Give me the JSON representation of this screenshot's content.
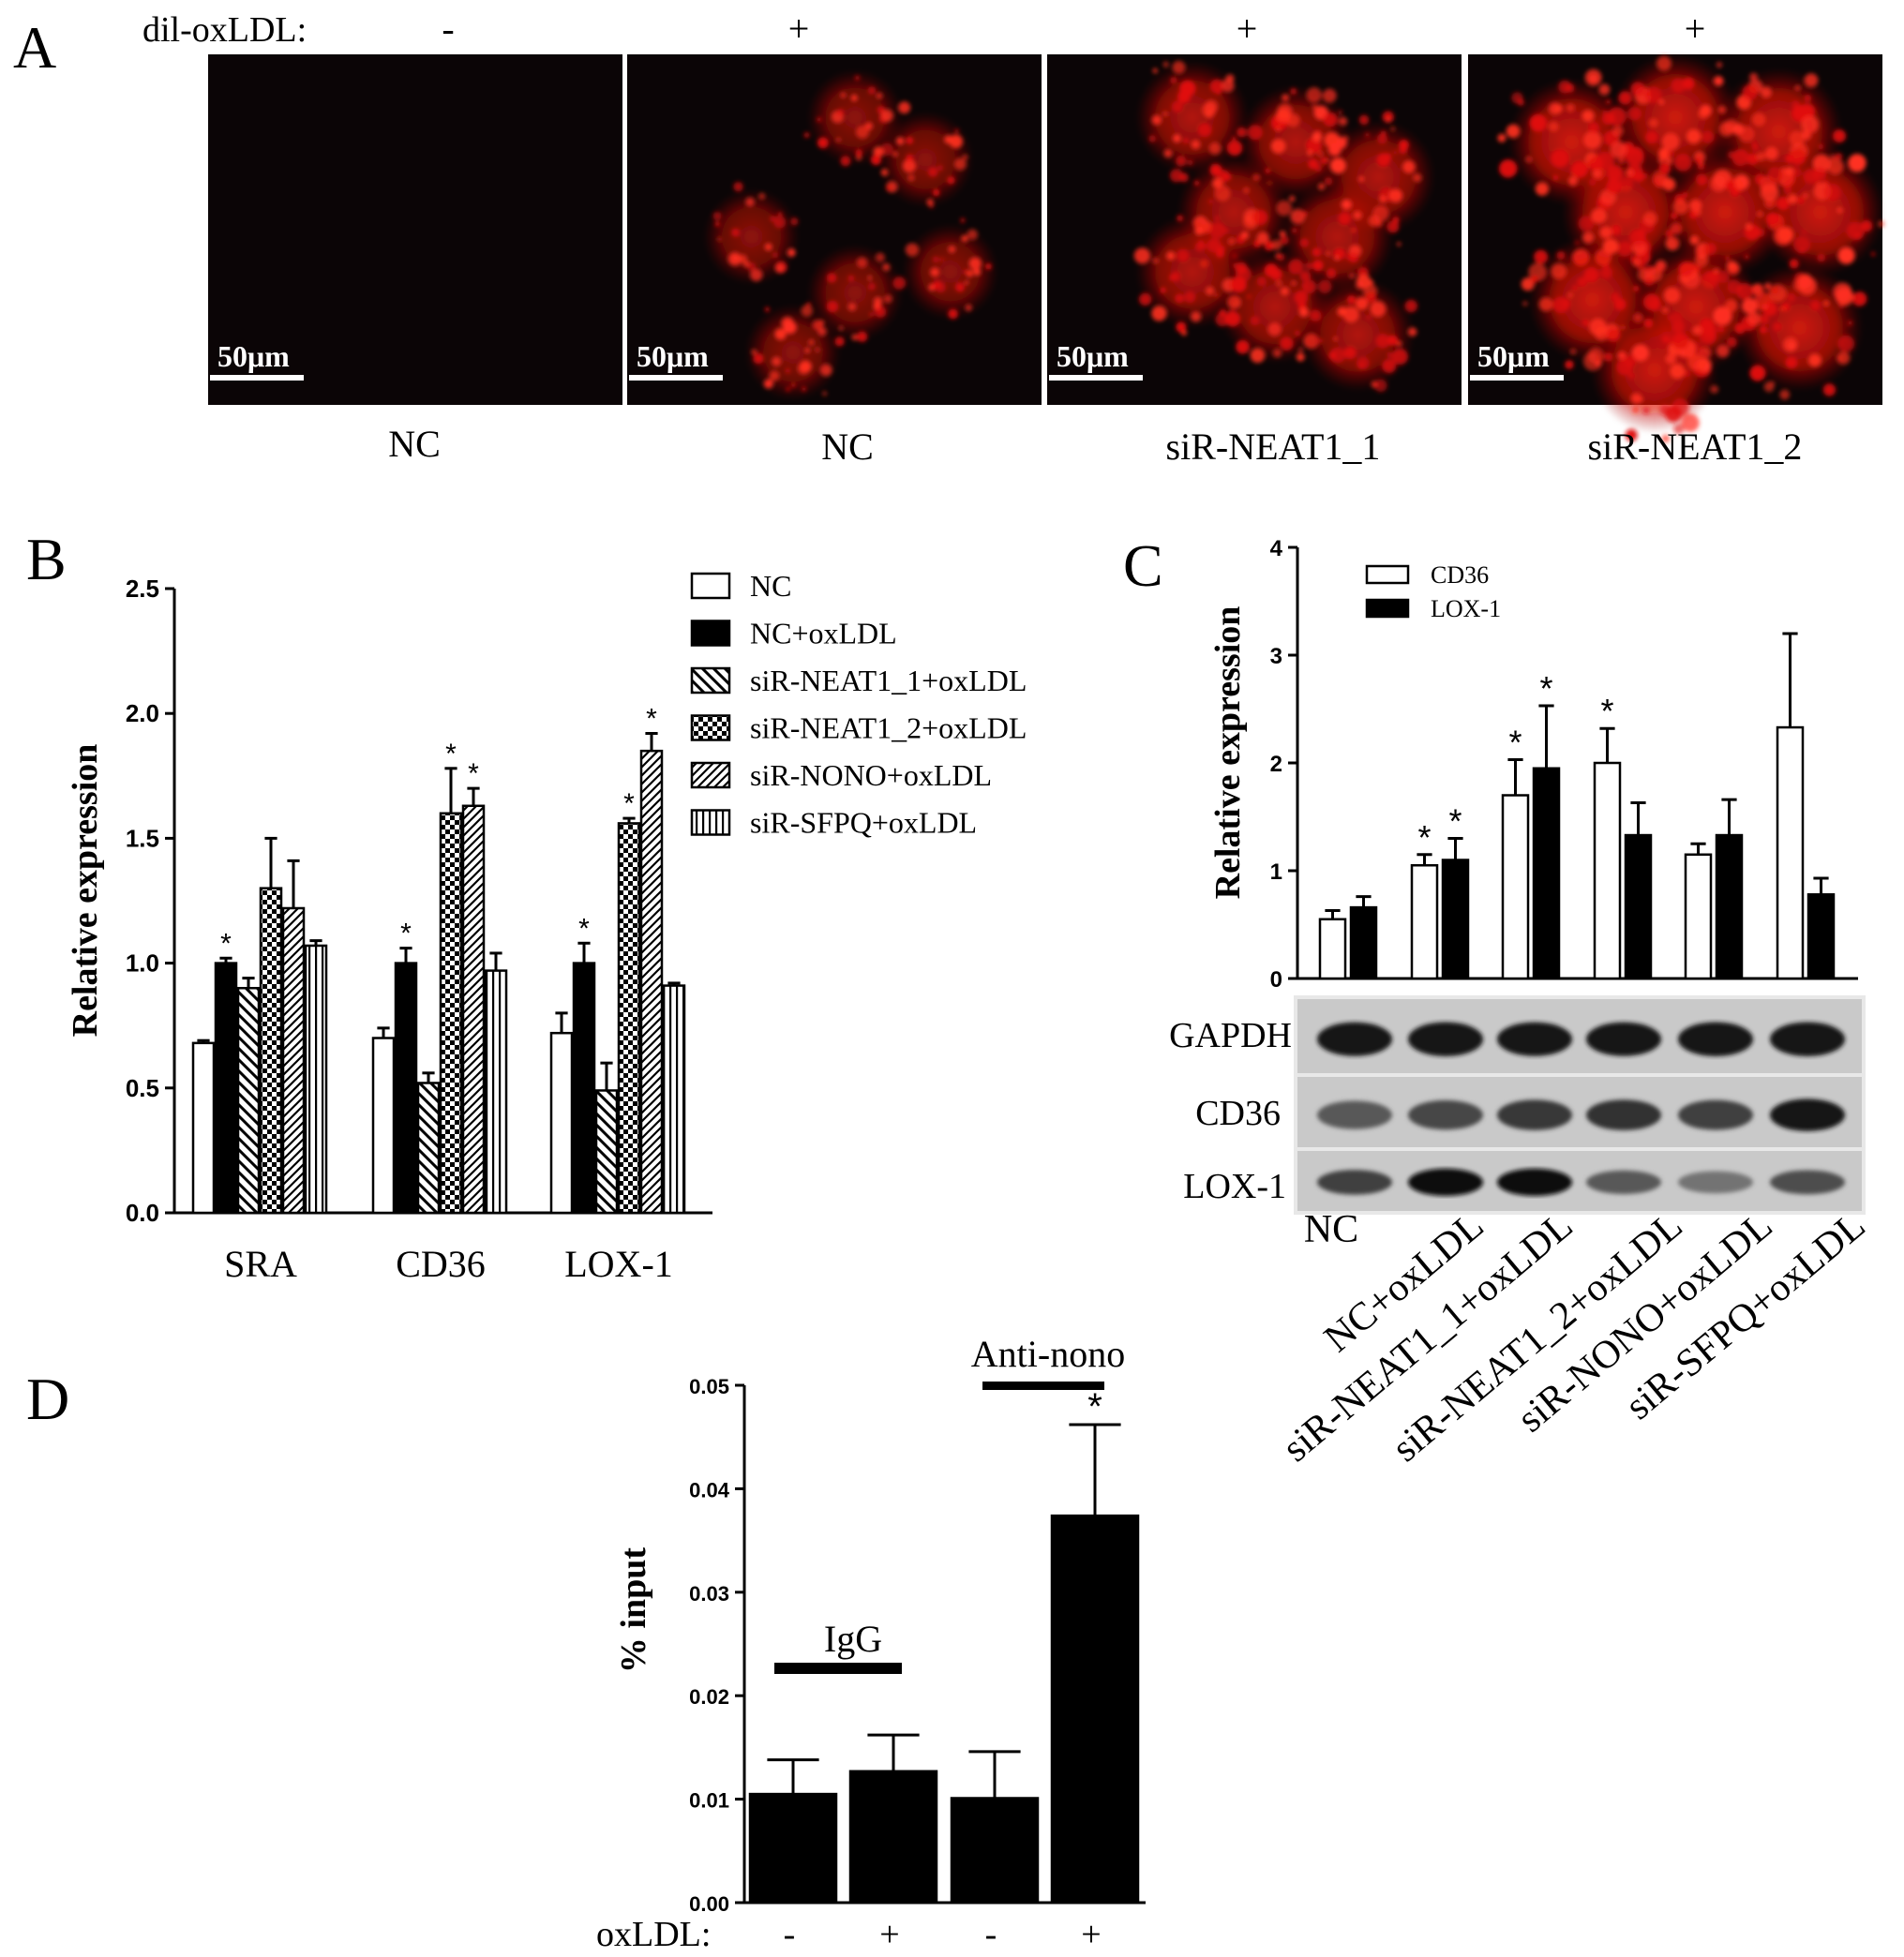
{
  "panel_a": {
    "letter": "A",
    "dil_label": "dil-oxLDL:",
    "signs": [
      "-",
      "+",
      "+",
      "+"
    ],
    "scale_bar": "50μm",
    "captions": [
      "NC",
      "NC",
      "siR-NEAT1_1",
      "siR-NEAT1_2"
    ],
    "intensity": [
      0.0,
      0.45,
      0.75,
      1.0
    ]
  },
  "chart_data": [
    {
      "panel": "B",
      "type": "bar",
      "ylabel": "Relative expression",
      "xlabel": "",
      "ylim": [
        0,
        2.5
      ],
      "yticks": [
        "0.0",
        "0.5",
        "1.0",
        "1.5",
        "2.0",
        "2.5"
      ],
      "categories": [
        "SRA",
        "CD36",
        "LOX-1"
      ],
      "legend_position": "top-right",
      "series": [
        {
          "name": "NC",
          "pattern": "white",
          "values": [
            0.68,
            0.7,
            0.72
          ],
          "errors": [
            0.01,
            0.04,
            0.08
          ],
          "sig": [
            false,
            false,
            false
          ]
        },
        {
          "name": "NC+oxLDL",
          "pattern": "black",
          "values": [
            1.0,
            1.0,
            1.0
          ],
          "errors": [
            0.02,
            0.06,
            0.08
          ],
          "sig": [
            true,
            true,
            true
          ]
        },
        {
          "name": "siR-NEAT1_1+oxLDL",
          "pattern": "hatch-back",
          "values": [
            0.9,
            0.52,
            0.49
          ],
          "errors": [
            0.04,
            0.04,
            0.11
          ],
          "sig": [
            false,
            false,
            false
          ]
        },
        {
          "name": "siR-NEAT1_2+oxLDL",
          "pattern": "checker",
          "values": [
            1.3,
            1.6,
            1.56
          ],
          "errors": [
            0.2,
            0.18,
            0.02
          ],
          "sig": [
            false,
            true,
            true
          ]
        },
        {
          "name": "siR-NONO+oxLDL",
          "pattern": "hatch-fwd",
          "values": [
            1.22,
            1.63,
            1.85
          ],
          "errors": [
            0.19,
            0.07,
            0.07
          ],
          "sig": [
            false,
            true,
            true
          ]
        },
        {
          "name": "siR-SFPQ+oxLDL",
          "pattern": "vlines",
          "values": [
            1.07,
            0.97,
            0.91
          ],
          "errors": [
            0.02,
            0.07,
            0.01
          ],
          "sig": [
            false,
            false,
            false
          ]
        }
      ]
    },
    {
      "panel": "C",
      "type": "bar",
      "ylabel": "Relative expression",
      "xlabel": "",
      "ylim": [
        0,
        4
      ],
      "yticks": [
        "0",
        "1",
        "2",
        "3",
        "4"
      ],
      "categories": [
        "NC",
        "NC+oxLDL",
        "siR-NEAT1_1+oxLDL",
        "siR-NEAT1_2+oxLDL",
        "siR-NONO+oxLDL",
        "siR-SFPQ+oxLDL"
      ],
      "legend_position": "top-left",
      "series": [
        {
          "name": "CD36",
          "pattern": "white",
          "values": [
            0.55,
            1.05,
            1.7,
            2.0,
            1.15,
            2.33
          ],
          "errors": [
            0.08,
            0.1,
            0.33,
            0.32,
            0.1,
            0.87
          ],
          "sig": [
            false,
            true,
            true,
            true,
            false,
            false
          ]
        },
        {
          "name": "LOX-1",
          "pattern": "black",
          "values": [
            0.66,
            1.1,
            1.95,
            1.33,
            1.33,
            0.78
          ],
          "errors": [
            0.1,
            0.2,
            0.58,
            0.3,
            0.33,
            0.15
          ],
          "sig": [
            false,
            true,
            true,
            false,
            false,
            false
          ]
        }
      ],
      "blot_labels": [
        "GAPDH",
        "CD36",
        "LOX-1"
      ],
      "blot_intensity": {
        "GAPDH": [
          0.9,
          0.92,
          0.9,
          0.9,
          0.92,
          0.92
        ],
        "CD36": [
          0.65,
          0.72,
          0.78,
          0.8,
          0.75,
          0.9
        ],
        "LOX-1": [
          0.75,
          0.95,
          0.95,
          0.65,
          0.55,
          0.7
        ]
      }
    },
    {
      "panel": "D",
      "type": "bar",
      "ylabel": "% input",
      "xlabel": "",
      "ylim": [
        0,
        0.05
      ],
      "yticks": [
        "0.00",
        "0.01",
        "0.02",
        "0.03",
        "0.04",
        "0.05"
      ],
      "row_label": "oxLDL:",
      "categories": [
        "-",
        "+",
        "-",
        "+"
      ],
      "groups": [
        "IgG",
        "Anti-nono"
      ],
      "series": [
        {
          "name": "",
          "pattern": "black",
          "values": [
            0.0105,
            0.0127,
            0.0101,
            0.0374
          ],
          "errors": [
            0.0033,
            0.0035,
            0.0045,
            0.0088
          ],
          "sig": [
            false,
            false,
            false,
            true
          ]
        }
      ]
    }
  ],
  "letters": {
    "b": "B",
    "c": "C",
    "d": "D"
  },
  "sig_mark": "*"
}
